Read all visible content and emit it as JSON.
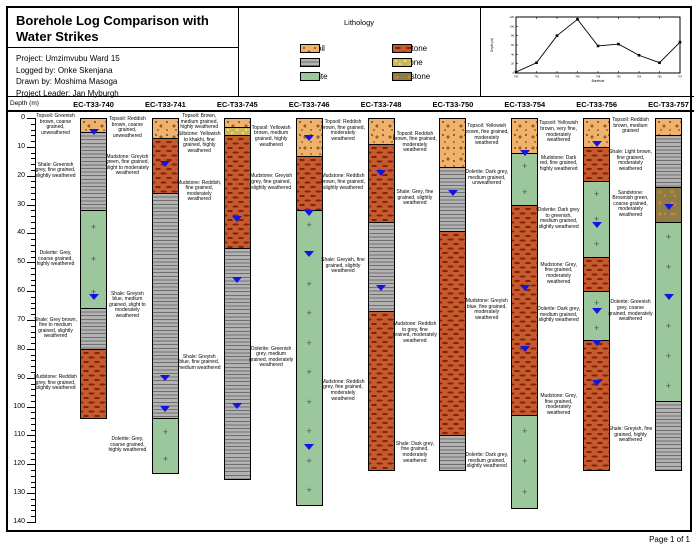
{
  "page": {
    "title": "Borehole Log Comparison with Water Strikes",
    "project_lines": [
      "Project: Umzimvubu Ward 15",
      "Logged by: Onke Skenjana",
      "Drawn by: Moshima Masoga",
      "Project Leader: Jan Myburgh"
    ],
    "footer": "Page 1 of 1"
  },
  "legend": {
    "title": "Lithology",
    "items": [
      {
        "label": "Topsoil",
        "lith": "topsoil"
      },
      {
        "label": "Mudstone",
        "lith": "mudstone"
      },
      {
        "label": "Shale",
        "lith": "shale"
      },
      {
        "label": "Siltstone",
        "lith": "siltstone"
      },
      {
        "label": "Dolerite",
        "lith": "dolerite"
      },
      {
        "label": "Sandstone",
        "lith": "sandstone"
      }
    ]
  },
  "depth_axis": {
    "label": "Depth (m)",
    "min": 0,
    "max": 140,
    "major_step": 10,
    "minor_step": 2
  },
  "colors": {
    "topsoil_bg": "#EFB26C",
    "topsoil_dot": "#9C6320",
    "shale_bg": "#B3B3B3",
    "shale_line": "#6F6F6F",
    "dolerite_bg": "#9CC69C",
    "dolerite_cross": "#46564A",
    "mudstone_bg": "#C25B2D",
    "mudstone_dash": "#8C1D06",
    "siltstone_bg": "#CBB75A",
    "siltstone_dot": "#EFE07E",
    "sandstone_bg": "#8D7C46",
    "sandstone_dot": "#C9853E",
    "water_strike": "#1414E0"
  },
  "boreholes": [
    {
      "id": "EC-T33-740",
      "water_strikes_m": [
        6,
        63
      ],
      "segments": [
        {
          "lith": "topsoil",
          "from": 0,
          "to": 5,
          "desc": "Topsoil: Greenish brown, coarse grained, unweathered"
        },
        {
          "lith": "shale",
          "from": 5,
          "to": 32,
          "desc": "Shale: Greenish grey, fine grained, slightly weathered"
        },
        {
          "lith": "dolerite",
          "from": 32,
          "to": 66,
          "desc": "Dolerite: Grey, coarse grained, highly weathered"
        },
        {
          "lith": "shale",
          "from": 66,
          "to": 80,
          "desc": "Shale: Grey brown, fine to medium grained, slightly weathered"
        },
        {
          "lith": "mudstone",
          "from": 80,
          "to": 104,
          "desc": "Mudstone: Reddish grey, fine grained, slightly weathered"
        }
      ]
    },
    {
      "id": "EC-T33-741",
      "water_strikes_m": [
        17,
        91,
        102
      ],
      "segments": [
        {
          "lith": "topsoil",
          "from": 0,
          "to": 7,
          "desc": "Topsoil: Reddish brown, coarse grained, unweathered"
        },
        {
          "lith": "mudstone",
          "from": 7,
          "to": 26,
          "desc": "Mudstone: Greyish green, fine grained, slight to moderately weathered"
        },
        {
          "lith": "shale",
          "from": 26,
          "to": 104,
          "desc": "Shale: Greyish blue, medium grained, slight to moderately weathered"
        },
        {
          "lith": "dolerite",
          "from": 104,
          "to": 123,
          "desc": "Dolerite: Grey, coarse grained, highly weathered"
        }
      ]
    },
    {
      "id": "EC-T33-745",
      "water_strikes_m": [
        36,
        57,
        101
      ],
      "segments": [
        {
          "lith": "topsoil",
          "from": 0,
          "to": 3,
          "desc": "Topsoil: Brown, medium grained, highly weathered"
        },
        {
          "lith": "siltstone",
          "from": 3,
          "to": 6,
          "desc": "Siltstone: Yellowish to khakhi, fine grained, highly weathered"
        },
        {
          "lith": "mudstone",
          "from": 6,
          "to": 45,
          "desc": "Mudstone: Reddish, fine grained, moderately weathered"
        },
        {
          "lith": "shale",
          "from": 45,
          "to": 125,
          "desc": "Shale: Greyish blue, fine grained, medium weathered"
        }
      ]
    },
    {
      "id": "EC-T33-746",
      "water_strikes_m": [
        8,
        34,
        48,
        115
      ],
      "segments": [
        {
          "lith": "topsoil",
          "from": 0,
          "to": 13,
          "desc": "Topsoil: Yellowish brown, medium grained, highly weathered"
        },
        {
          "lith": "mudstone",
          "from": 13,
          "to": 32,
          "desc": "Mudstone: Greyish grey, fine grained, slightly weathered"
        },
        {
          "lith": "dolerite",
          "from": 32,
          "to": 134,
          "desc": "Dolerite: Greenish grey, medium grained, moderately weathered"
        }
      ]
    },
    {
      "id": "EC-T33-748",
      "water_strikes_m": [
        20,
        60
      ],
      "segments": [
        {
          "lith": "topsoil",
          "from": 0,
          "to": 9,
          "desc": "Topsoil: Reddish brown, fine grained, moderately weathered"
        },
        {
          "lith": "mudstone",
          "from": 9,
          "to": 36,
          "desc": "Mudstone: Reddish brown, fine grained, slightly weathered"
        },
        {
          "lith": "shale",
          "from": 36,
          "to": 67,
          "desc": "Shale: Greyish, fine grained, slightly weathered"
        },
        {
          "lith": "mudstone",
          "from": 67,
          "to": 122,
          "desc": "Mudstone: Reddish grey, fine grained, moderately weathered"
        }
      ]
    },
    {
      "id": "EC-T33-750",
      "water_strikes_m": [
        27
      ],
      "segments": [
        {
          "lith": "topsoil",
          "from": 0,
          "to": 17,
          "desc": "Topsoil: Reddish brown, fine grained, moderately weathered"
        },
        {
          "lith": "shale",
          "from": 17,
          "to": 39,
          "desc": "Shale: Grey, fine grained, slightly weathered"
        },
        {
          "lith": "mudstone",
          "from": 39,
          "to": 110,
          "desc": "Mudstone: Reddish to grey, fine grained, moderately weathered"
        },
        {
          "lith": "shale",
          "from": 110,
          "to": 122,
          "desc": "Shale: Dark grey, fine grained, moderately weathered"
        }
      ]
    },
    {
      "id": "EC-T33-754",
      "water_strikes_m": [
        13,
        60,
        81
      ],
      "segments": [
        {
          "lith": "topsoil",
          "from": 0,
          "to": 12,
          "desc": "Topsoil: Yellowish brown, fine grained, moderately weathered"
        },
        {
          "lith": "dolerite",
          "from": 12,
          "to": 30,
          "desc": "Dolerite: Dark grey, medium grained, unweathered"
        },
        {
          "lith": "mudstone",
          "from": 30,
          "to": 103,
          "desc": "Mudstone: Greyish blue, fine grained, moderately weathered"
        },
        {
          "lith": "dolerite",
          "from": 103,
          "to": 135,
          "desc": "Dolerite: Dark grey, medium grained, slightly weathered"
        }
      ]
    },
    {
      "id": "EC-T33-756",
      "water_strikes_m": [
        10,
        38,
        68,
        79,
        93
      ],
      "segments": [
        {
          "lith": "topsoil",
          "from": 0,
          "to": 10,
          "desc": "Topsoil: Yellowish brown, very fine, moderately weathered"
        },
        {
          "lith": "mudstone",
          "from": 10,
          "to": 22,
          "desc": "Mudstone: Dark red, fine grained, highly weathered"
        },
        {
          "lith": "dolerite",
          "from": 22,
          "to": 48,
          "desc": "Dolerite: Dark grey to greenish, medium grained, slightly weathered"
        },
        {
          "lith": "mudstone",
          "from": 48,
          "to": 60,
          "desc": "Mudstone: Grey, fine grained, moderately weathered"
        },
        {
          "lith": "dolerite",
          "from": 60,
          "to": 77,
          "desc": "Dolerite: Dark grey, medium grained, slightly weathered"
        },
        {
          "lith": "mudstone",
          "from": 77,
          "to": 122,
          "desc": "Mudstone: Grey, fine grained, moderately weathered"
        }
      ]
    },
    {
      "id": "EC-T33-757",
      "water_strikes_m": [
        32,
        63
      ],
      "segments": [
        {
          "lith": "topsoil",
          "from": 0,
          "to": 6,
          "desc": "Topsoil: Reddish brown, medium grained"
        },
        {
          "lith": "shale",
          "from": 6,
          "to": 24,
          "desc": "Shale: Light brown, fine grained, moderately weathered"
        },
        {
          "lith": "sandstone",
          "from": 24,
          "to": 36,
          "desc": "Sandstone: Brownish green, coarse grained, moderately weathered"
        },
        {
          "lith": "dolerite",
          "from": 36,
          "to": 98,
          "desc": "Dolerite: Greenish grey, coarse grained, moderately weathered"
        },
        {
          "lith": "shale",
          "from": 98,
          "to": 122,
          "desc": "Shale: Greyish, fine grained, highly weathered"
        }
      ]
    }
  ],
  "chart_data": {
    "type": "line",
    "categories": [
      "EC-T33-740",
      "EC-T33-741",
      "EC-T33-745",
      "EC-T33-746",
      "EC-T33-748",
      "EC-T33-750",
      "EC-T33-754",
      "EC-T33-756",
      "EC-T33-757"
    ],
    "values": [
      2,
      22,
      80,
      115,
      58,
      62,
      38,
      22,
      66
    ],
    "title": "",
    "xlabel": "Borehole",
    "ylabel": "Depth (m)",
    "ylim": [
      0,
      120
    ],
    "grid": false,
    "legend_position": "none"
  }
}
